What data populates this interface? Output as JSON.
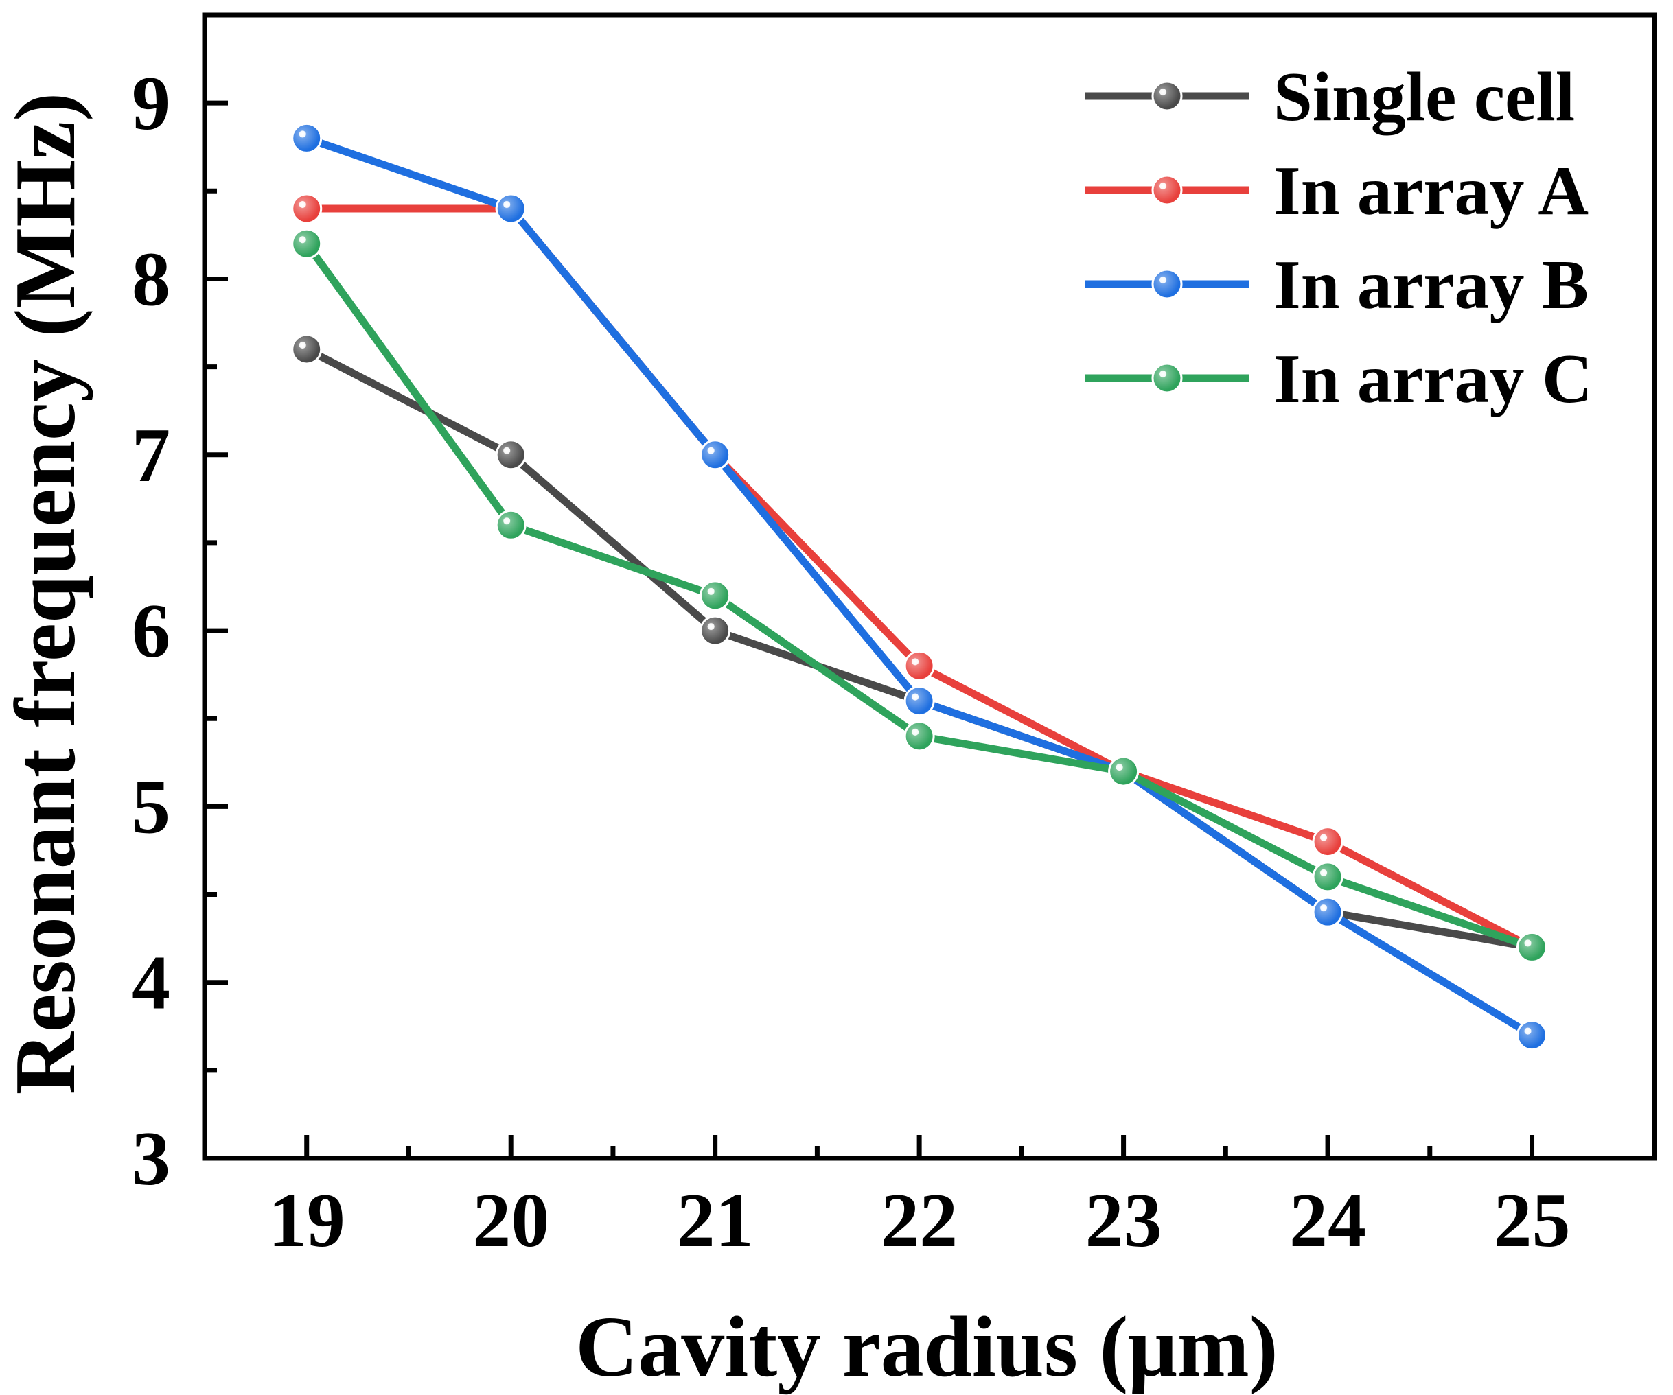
{
  "chart_data": {
    "type": "line",
    "title": "",
    "xlabel": "Cavity radius (μm)",
    "ylabel": "Resonant frequency (MHz)",
    "x": [
      19,
      20,
      21,
      22,
      23,
      24,
      25
    ],
    "x_tick_labels": [
      "19",
      "20",
      "21",
      "22",
      "23",
      "24",
      "25"
    ],
    "y_tick_labels": [
      "3",
      "4",
      "5",
      "6",
      "7",
      "8",
      "9"
    ],
    "xlim": [
      18.5,
      25.6
    ],
    "ylim": [
      3,
      9.5
    ],
    "grid": false,
    "legend_position": "top-right",
    "series": [
      {
        "name": "Single cell",
        "color": "#4a4a4a",
        "values": [
          7.6,
          7.0,
          6.0,
          5.6,
          5.2,
          4.4,
          4.2
        ]
      },
      {
        "name": "In array A",
        "color": "#e8403c",
        "values": [
          8.4,
          8.4,
          7.0,
          5.8,
          5.2,
          4.8,
          4.2
        ]
      },
      {
        "name": "In array B",
        "color": "#1f6fe0",
        "values": [
          8.8,
          8.4,
          7.0,
          5.6,
          5.2,
          4.4,
          3.7
        ]
      },
      {
        "name": "In array C",
        "color": "#2fa35c",
        "values": [
          8.2,
          6.6,
          6.2,
          5.4,
          5.2,
          4.6,
          4.2
        ]
      }
    ]
  }
}
